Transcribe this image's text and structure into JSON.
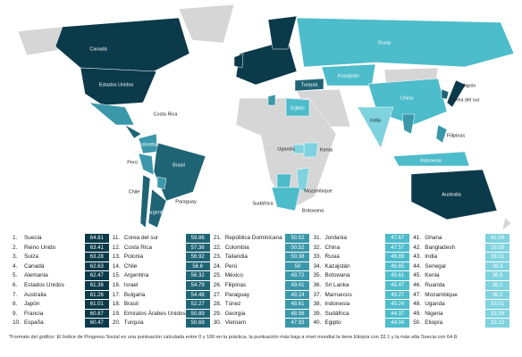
{
  "map": {
    "labels": [
      "Canadá",
      "Estados Unidos",
      "Costa Rica",
      "Colombia",
      "Perú",
      "Brasil",
      "Chile",
      "Paraguay",
      "Argentina",
      "Rusia",
      "Kazajstán",
      "China",
      "Japón",
      "Corea del sur",
      "Turquía",
      "India",
      "Filipinas",
      "Indonesia",
      "Australia",
      "Egipto",
      "Kenia",
      "Uganda",
      "Mozambique",
      "Botswana",
      "Sudáfrica"
    ]
  },
  "table": {
    "columns": [
      [
        {
          "rank": "1.",
          "name": "Suecia",
          "score": 64.81
        },
        {
          "rank": "2.",
          "name": "Reino Unido",
          "score": 63.41
        },
        {
          "rank": "3.",
          "name": "Suiza",
          "score": 63.28
        },
        {
          "rank": "4.",
          "name": "Canadá",
          "score": 62.63
        },
        {
          "rank": "5.",
          "name": "Alemania",
          "score": 62.47
        },
        {
          "rank": "6.",
          "name": "Estados Unidos",
          "score": 61.36
        },
        {
          "rank": "7.",
          "name": "Australia",
          "score": 61.26
        },
        {
          "rank": "8.",
          "name": "Japón",
          "score": 61.01
        },
        {
          "rank": "9.",
          "name": "Francia",
          "score": 60.87
        },
        {
          "rank": "10.",
          "name": "España",
          "score": 60.47
        }
      ],
      [
        {
          "rank": "11.",
          "name": "Corea del sur",
          "score": 59.86
        },
        {
          "rank": "12.",
          "name": "Costa Rica",
          "score": 57.36
        },
        {
          "rank": "13.",
          "name": "Polonia",
          "score": 56.92
        },
        {
          "rank": "14.",
          "name": "Chile",
          "score": 56.6
        },
        {
          "rank": "15.",
          "name": "Argentina",
          "score": 56.32
        },
        {
          "rank": "16.",
          "name": "Israel",
          "score": 54.79
        },
        {
          "rank": "17.",
          "name": "Bulgaria",
          "score": 54.48
        },
        {
          "rank": "18.",
          "name": "Brasil",
          "score": 52.27
        },
        {
          "rank": "19.",
          "name": "Emiratos Árabes Unidos",
          "score": 50.89
        },
        {
          "rank": "20.",
          "name": "Turquía",
          "score": 50.69
        }
      ],
      [
        {
          "rank": "21.",
          "name": "República Dominicana",
          "score": 50.52
        },
        {
          "rank": "22.",
          "name": "Colombia",
          "score": 50.52
        },
        {
          "rank": "23.",
          "name": "Tailandia",
          "score": 50.38
        },
        {
          "rank": "24.",
          "name": "Perú",
          "score": 50
        },
        {
          "rank": "25.",
          "name": "México",
          "score": 49.72
        },
        {
          "rank": "26.",
          "name": "Filipinas",
          "score": 49.41
        },
        {
          "rank": "27.",
          "name": "Paraguay",
          "score": 49.24
        },
        {
          "rank": "28.",
          "name": "Túnez",
          "score": 48.61
        },
        {
          "rank": "29.",
          "name": "Georgia",
          "score": 48.56
        },
        {
          "rank": "30.",
          "name": "Vietnam",
          "score": 47.93
        }
      ],
      [
        {
          "rank": "31.",
          "name": "Jordania",
          "score": 47.67
        },
        {
          "rank": "32.",
          "name": "China",
          "score": 47.57
        },
        {
          "rank": "33.",
          "name": "Rusia",
          "score": 46.89
        },
        {
          "rank": "34.",
          "name": "Kazajstán",
          "score": 46.85
        },
        {
          "rank": "35.",
          "name": "Botswana",
          "score": 45.61
        },
        {
          "rank": "36.",
          "name": "Sri Lanka",
          "score": 45.47
        },
        {
          "rank": "37.",
          "name": "Marruecos",
          "score": 45.27
        },
        {
          "rank": "38.",
          "name": "Indonesia",
          "score": 45.24
        },
        {
          "rank": "39.",
          "name": "Sudáfrica",
          "score": 44.37
        },
        {
          "rank": "40.",
          "name": "Egipto",
          "score": 44.04
        }
      ],
      [
        {
          "rank": "41.",
          "name": "Ghana",
          "score": 42.89
        },
        {
          "rank": "42.",
          "name": "Bangladesh",
          "score": 39.58
        },
        {
          "rank": "43.",
          "name": "India",
          "score": 39.31
        },
        {
          "rank": "44.",
          "name": "Senegal",
          "score": 39.3
        },
        {
          "rank": "45.",
          "name": "Kenia",
          "score": 38.9
        },
        {
          "rank": "46.",
          "name": "Ruanda",
          "score": 38.2
        },
        {
          "rank": "47.",
          "name": "Mozambique",
          "score": 36.2
        },
        {
          "rank": "48.",
          "name": "Uganda",
          "score": 33.51
        },
        {
          "rank": "49.",
          "name": "Nigeria",
          "score": 33.39
        },
        {
          "rank": "50.",
          "name": "Etiopía",
          "score": 32.13
        }
      ]
    ]
  },
  "footnote": "*Formato del gráfico: El Índice de Progreso Social es una puntuación calculada entre 0 y 100 en la práctica, la puntuación más baja a nivel mundial la tiene Etiopía con 32.1 y la más alta Suecia con 64.8."
}
